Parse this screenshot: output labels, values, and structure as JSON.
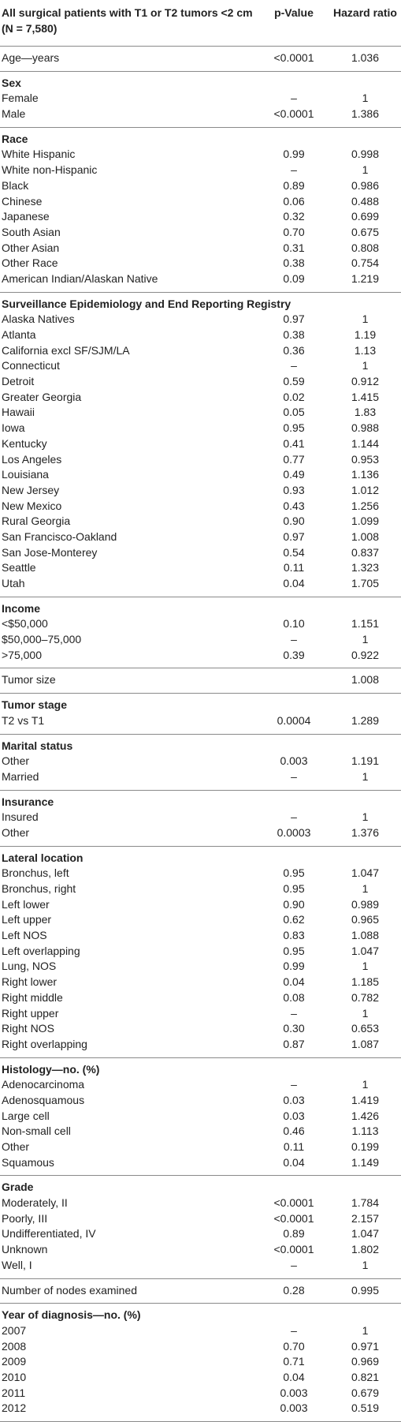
{
  "table": {
    "header": [
      "All surgical patients with T1 or T2 tumors <2 cm (N = 7,580)",
      "p-Value",
      "Hazard ratio"
    ],
    "sections": [
      {
        "rows": [
          [
            "Age—years",
            "<0.0001",
            "1.036"
          ]
        ]
      },
      {
        "title": "Sex",
        "rows": [
          [
            "Female",
            "–",
            "1"
          ],
          [
            "Male",
            "<0.0001",
            "1.386"
          ]
        ]
      },
      {
        "title": "Race",
        "rows": [
          [
            "White Hispanic",
            "0.99",
            "0.998"
          ],
          [
            "White non-Hispanic",
            "–",
            "1"
          ],
          [
            "Black",
            "0.89",
            "0.986"
          ],
          [
            "Chinese",
            "0.06",
            "0.488"
          ],
          [
            "Japanese",
            "0.32",
            "0.699"
          ],
          [
            "South Asian",
            "0.70",
            "0.675"
          ],
          [
            "Other Asian",
            "0.31",
            "0.808"
          ],
          [
            "Other Race",
            "0.38",
            "0.754"
          ],
          [
            "American Indian/Alaskan Native",
            "0.09",
            "1.219"
          ]
        ]
      },
      {
        "title": "Surveillance Epidemiology and End Reporting Registry",
        "rows": [
          [
            "Alaska Natives",
            "0.97",
            "1"
          ],
          [
            "Atlanta",
            "0.38",
            "1.19"
          ],
          [
            "California excl SF/SJM/LA",
            "0.36",
            "1.13"
          ],
          [
            "Connecticut",
            "–",
            "1"
          ],
          [
            "Detroit",
            "0.59",
            "0.912"
          ],
          [
            "Greater Georgia",
            "0.02",
            "1.415"
          ],
          [
            "Hawaii",
            "0.05",
            "1.83"
          ],
          [
            "Iowa",
            "0.95",
            "0.988"
          ],
          [
            "Kentucky",
            "0.41",
            "1.144"
          ],
          [
            "Los Angeles",
            "0.77",
            "0.953"
          ],
          [
            "Louisiana",
            "0.49",
            "1.136"
          ],
          [
            "New Jersey",
            "0.93",
            "1.012"
          ],
          [
            "New Mexico",
            "0.43",
            "1.256"
          ],
          [
            "Rural Georgia",
            "0.90",
            "1.099"
          ],
          [
            "San Francisco-Oakland",
            "0.97",
            "1.008"
          ],
          [
            "San Jose-Monterey",
            "0.54",
            "0.837"
          ],
          [
            "Seattle",
            "0.11",
            "1.323"
          ],
          [
            "Utah",
            "0.04",
            "1.705"
          ]
        ]
      },
      {
        "title": "Income",
        "rows": [
          [
            "<$50,000",
            "0.10",
            "1.151"
          ],
          [
            "$50,000–75,000",
            "–",
            "1"
          ],
          [
            ">75,000",
            "0.39",
            "0.922"
          ]
        ]
      },
      {
        "rows": [
          [
            "Tumor size",
            null,
            "1.008"
          ]
        ]
      },
      {
        "title": "Tumor stage",
        "rows": [
          [
            "T2 vs T1",
            "0.0004",
            "1.289"
          ]
        ]
      },
      {
        "title": "Marital status",
        "rows": [
          [
            "Other",
            "0.003",
            "1.191"
          ],
          [
            "Married",
            "–",
            "1"
          ]
        ]
      },
      {
        "title": "Insurance",
        "rows": [
          [
            "Insured",
            "–",
            "1"
          ],
          [
            "Other",
            "0.0003",
            "1.376"
          ]
        ]
      },
      {
        "title": "Lateral location",
        "rows": [
          [
            "Bronchus, left",
            "0.95",
            "1.047"
          ],
          [
            "Bronchus, right",
            "0.95",
            "1"
          ],
          [
            "Left lower",
            "0.90",
            "0.989"
          ],
          [
            "Left upper",
            "0.62",
            "0.965"
          ],
          [
            "Left NOS",
            "0.83",
            "1.088"
          ],
          [
            "Left overlapping",
            "0.95",
            "1.047"
          ],
          [
            "Lung, NOS",
            "0.99",
            "1"
          ],
          [
            "Right lower",
            "0.04",
            "1.185"
          ],
          [
            "Right middle",
            "0.08",
            "0.782"
          ],
          [
            "Right upper",
            "–",
            "1"
          ],
          [
            "Right NOS",
            "0.30",
            "0.653"
          ],
          [
            "Right overlapping",
            "0.87",
            "1.087"
          ]
        ]
      },
      {
        "title": "Histology—no. (%)",
        "rows": [
          [
            "Adenocarcinoma",
            "–",
            "1"
          ],
          [
            "Adenosquamous",
            "0.03",
            "1.419"
          ],
          [
            "Large cell",
            "0.03",
            "1.426"
          ],
          [
            "Non-small cell",
            "0.46",
            "1.113"
          ],
          [
            "Other",
            "0.11",
            "0.199"
          ],
          [
            "Squamous",
            "0.04",
            "1.149"
          ]
        ]
      },
      {
        "title": "Grade",
        "rows": [
          [
            "Moderately, II",
            "<0.0001",
            "1.784"
          ],
          [
            "Poorly, III",
            "<0.0001",
            "2.157"
          ],
          [
            "Undifferentiated, IV",
            "0.89",
            "1.047"
          ],
          [
            "Unknown",
            "<0.0001",
            "1.802"
          ],
          [
            "Well, I",
            "–",
            "1"
          ]
        ]
      },
      {
        "rows": [
          [
            "Number of nodes examined",
            "0.28",
            "0.995"
          ]
        ]
      },
      {
        "title": "Year of diagnosis—no. (%)",
        "rows": [
          [
            "2007",
            "–",
            "1"
          ],
          [
            "2008",
            "0.70",
            "0.971"
          ],
          [
            "2009",
            "0.71",
            "0.969"
          ],
          [
            "2010",
            "0.04",
            "0.821"
          ],
          [
            "2011",
            "0.003",
            "0.679"
          ],
          [
            "2012",
            "0.003",
            "0.519"
          ]
        ]
      }
    ]
  }
}
